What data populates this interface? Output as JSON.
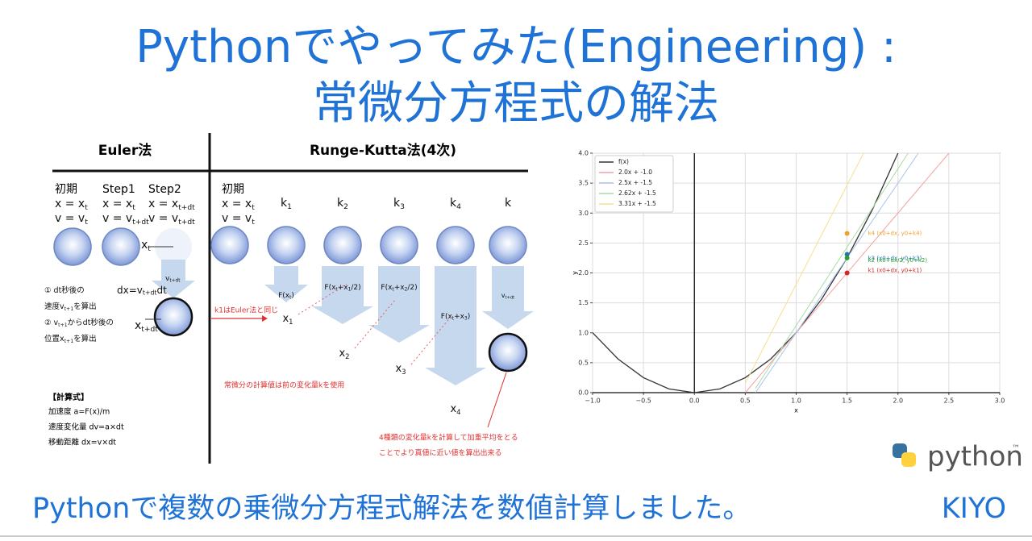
{
  "title": {
    "line1": "Pythonでやってみた(Engineering) :",
    "line2": "常微分方程式の解法"
  },
  "diagram": {
    "euler": {
      "title": "Euler法",
      "columns": [
        {
          "label": "初期",
          "x": [
            "x = x",
            "t"
          ],
          "v": [
            "v = v",
            "t"
          ]
        },
        {
          "label": "Step1",
          "x": [
            "x = x",
            "t"
          ],
          "v": [
            "v = v",
            "t+dt"
          ]
        },
        {
          "label": "Step2",
          "x": [
            "x = x",
            "t+dt"
          ],
          "v": [
            "v = v",
            "t+dt"
          ]
        }
      ],
      "pos_top": [
        "x",
        "t"
      ],
      "pos_bottom": [
        "x",
        "t+dt"
      ],
      "velocity": [
        "v",
        "t+dt"
      ],
      "dx": [
        "dx=v",
        "t+dt",
        "dt"
      ],
      "notes": [
        [
          "① dt秒後の"
        ],
        [
          "速度v",
          "t+1",
          "を算出"
        ],
        [
          "② v",
          "t+1",
          "からdt秒後の"
        ],
        [
          "位置x",
          "t+1",
          "を算出"
        ]
      ],
      "formula_title": "【計算式】",
      "formulas": [
        "加速度 a=F(x)/m",
        "速度変化量 dv=a×dt",
        "移動距離 dx=v×dt"
      ]
    },
    "rk": {
      "title": "Runge-Kutta法(4次)",
      "initial": {
        "label": "初期",
        "x": [
          "x = x",
          "t"
        ],
        "v": [
          "v = v",
          "t"
        ]
      },
      "columns": [
        [
          "k",
          "1"
        ],
        [
          "k",
          "2"
        ],
        [
          "k",
          "3"
        ],
        [
          "k",
          "4"
        ],
        [
          "k"
        ]
      ],
      "arrows": [
        [
          "F(x",
          "t",
          ")"
        ],
        [
          "F(x",
          "t",
          "+x",
          "1",
          "/2)"
        ],
        [
          "F(x",
          "t",
          "+x",
          "2",
          "/2)"
        ],
        [
          "F(x",
          "t",
          "+x",
          "3",
          ")"
        ],
        [
          "v",
          "t+dt"
        ]
      ],
      "nodes": [
        [
          "x",
          "1"
        ],
        [
          "x",
          "2"
        ],
        [
          "x",
          "3"
        ],
        [
          "x",
          "4"
        ]
      ],
      "notes": [
        "k1はEuler法と同じ",
        "常微分の計算値は前の変化量kを使用",
        "4種類の変化量kを計算して加重平均をとる",
        "ことでより真値に近い値を算出出来る"
      ]
    }
  },
  "chart_data": {
    "type": "line",
    "xlabel": "x",
    "ylabel": "y",
    "grid": true,
    "legend": "upper left",
    "xlim": [
      -1,
      3
    ],
    "ylim": [
      0,
      4
    ],
    "xticks": [
      {
        "value": -1,
        "label": "−1.0"
      },
      {
        "value": -0.5,
        "label": "−0.5"
      },
      {
        "value": 0,
        "label": "0.0"
      },
      {
        "value": 0.5,
        "label": "0.5"
      },
      {
        "value": 1,
        "label": "1.0"
      },
      {
        "value": 1.5,
        "label": "1.5"
      },
      {
        "value": 2,
        "label": "2.0"
      },
      {
        "value": 2.5,
        "label": "2.5"
      },
      {
        "value": 3,
        "label": "3.0"
      }
    ],
    "yticks": [
      {
        "value": 0,
        "label": "0.0"
      },
      {
        "value": 0.5,
        "label": "0.5"
      },
      {
        "value": 1,
        "label": "1.0"
      },
      {
        "value": 1.5,
        "label": "1.5"
      },
      {
        "value": 2,
        "label": "2.0"
      },
      {
        "value": 2.5,
        "label": "2.5"
      },
      {
        "value": 3,
        "label": "3.0"
      },
      {
        "value": 3.5,
        "label": "3.5"
      },
      {
        "value": 4,
        "label": "4.0"
      }
    ],
    "series": [
      {
        "name": "f(x)",
        "color": "#333333",
        "x": [
          -1,
          -0.75,
          -0.5,
          -0.25,
          0,
          0.25,
          0.5,
          0.75,
          1,
          1.25,
          1.5,
          1.75,
          2
        ],
        "values": [
          1,
          0.5625,
          0.25,
          0.0625,
          0,
          0.0625,
          0.25,
          0.5625,
          1,
          1.5625,
          2.25,
          3.0625,
          4
        ]
      },
      {
        "name": "2.0x + -1.0",
        "color": "#f4a0a0",
        "x": [
          0.5,
          2.5
        ],
        "values": [
          0,
          4
        ]
      },
      {
        "name": "2.5x + -1.5",
        "color": "#a8c4ec",
        "x": [
          0.6,
          2.2
        ],
        "values": [
          0,
          4
        ]
      },
      {
        "name": "2.62x + -1.5",
        "color": "#a8dca8",
        "x": [
          0.6,
          2.1
        ],
        "values": [
          0.072,
          4.002
        ]
      },
      {
        "name": "3.31x + -1.5",
        "color": "#f6e08a",
        "x": [
          0.5,
          1.7
        ],
        "values": [
          0.155,
          4.127
        ]
      }
    ],
    "markers": [
      {
        "name": "k4 (x0+dx, y0+k4)",
        "color": "#f0a030",
        "x": 1.5,
        "value": 2.66
      },
      {
        "name": "k3 (x0+dx, y0+k3)",
        "color": "#1f77b4",
        "x": 1.5,
        "value": 2.31
      },
      {
        "name": "k2 (x0+dx/2, y0+k2)",
        "color": "#2ca02c",
        "x": 1.5,
        "value": 2.25
      },
      {
        "name": "k1 (x0+dx, y0+k1)",
        "color": "#d62728",
        "x": 1.5,
        "value": 2.0
      }
    ]
  },
  "footer": {
    "text": "Pythonで複数の乗微分方程式解法を数値計算しました。",
    "author": "KIYO"
  },
  "logo": {
    "text": "python",
    "mark": "™"
  }
}
